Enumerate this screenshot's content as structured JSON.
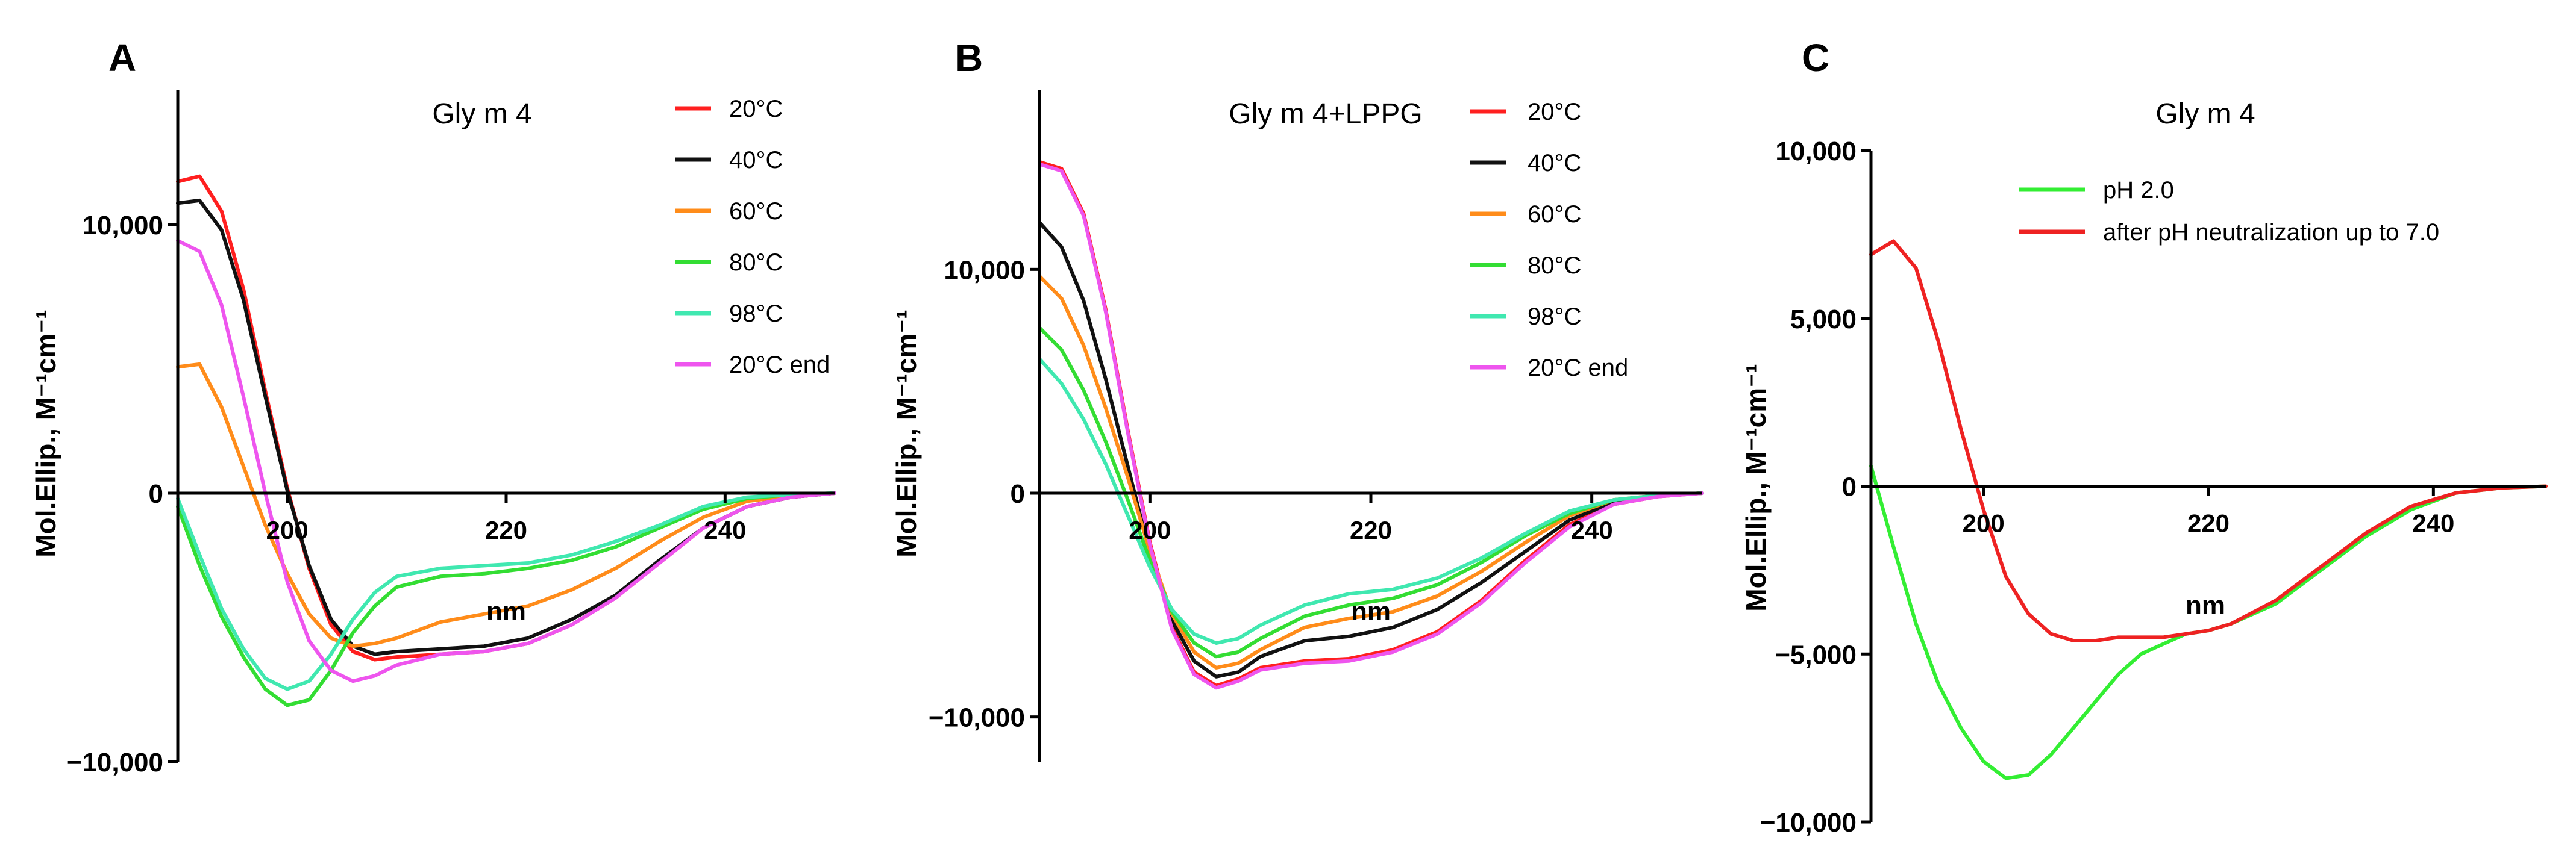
{
  "chart_data": [
    {
      "type": "line",
      "panel_label": "A",
      "title": "Gly m 4",
      "xlabel": "nm",
      "ylabel": "Mol.Ellip., M⁻¹cm⁻¹",
      "xlim": [
        190,
        250
      ],
      "ylim": [
        -10000,
        15000
      ],
      "xticks": [
        200,
        220,
        240
      ],
      "xtick_labels": [
        "200",
        "220",
        "240"
      ],
      "yticks": [
        10000,
        0,
        -10000
      ],
      "ytick_labels": [
        "10,000",
        "0",
        "−10,000"
      ],
      "legend_position": "top-right",
      "series": [
        {
          "name": "20°C",
          "color": "#ff1f1f",
          "x": [
            190,
            192,
            194,
            196,
            198,
            200,
            202,
            204,
            206,
            208,
            210,
            214,
            218,
            222,
            226,
            230,
            234,
            238,
            242,
            246,
            250
          ],
          "y": [
            11600,
            11800,
            10500,
            7600,
            3800,
            200,
            -2800,
            -4900,
            -5900,
            -6200,
            -6100,
            -6000,
            -5900,
            -5600,
            -4900,
            -3900,
            -2600,
            -1300,
            -500,
            -150,
            0
          ]
        },
        {
          "name": "40°C",
          "color": "#111111",
          "x": [
            190,
            192,
            194,
            196,
            198,
            200,
            202,
            204,
            206,
            208,
            210,
            214,
            218,
            222,
            226,
            230,
            234,
            238,
            242,
            246,
            250
          ],
          "y": [
            10800,
            10900,
            9800,
            7200,
            3600,
            100,
            -2700,
            -4700,
            -5700,
            -6000,
            -5900,
            -5800,
            -5700,
            -5400,
            -4700,
            -3800,
            -2500,
            -1300,
            -500,
            -150,
            0
          ]
        },
        {
          "name": "60°C",
          "color": "#ff8c1a",
          "x": [
            190,
            192,
            194,
            196,
            198,
            200,
            202,
            204,
            206,
            208,
            210,
            214,
            218,
            222,
            226,
            230,
            234,
            238,
            242,
            246,
            250
          ],
          "y": [
            4700,
            4800,
            3200,
            1000,
            -1200,
            -3000,
            -4500,
            -5400,
            -5700,
            -5600,
            -5400,
            -4800,
            -4500,
            -4200,
            -3600,
            -2800,
            -1800,
            -900,
            -300,
            -100,
            0
          ]
        },
        {
          "name": "80°C",
          "color": "#33dd33",
          "x": [
            190,
            192,
            194,
            196,
            198,
            200,
            202,
            204,
            206,
            208,
            210,
            214,
            218,
            222,
            226,
            230,
            234,
            238,
            242,
            246,
            250
          ],
          "y": [
            -500,
            -2700,
            -4600,
            -6100,
            -7300,
            -7900,
            -7700,
            -6600,
            -5200,
            -4200,
            -3500,
            -3100,
            -3000,
            -2800,
            -2500,
            -2000,
            -1300,
            -600,
            -200,
            -50,
            0
          ]
        },
        {
          "name": "98°C",
          "color": "#40e8b0",
          "x": [
            190,
            192,
            194,
            196,
            198,
            200,
            202,
            204,
            206,
            208,
            210,
            214,
            218,
            222,
            226,
            230,
            234,
            238,
            242,
            246,
            250
          ],
          "y": [
            -200,
            -2300,
            -4300,
            -5800,
            -6900,
            -7300,
            -7000,
            -6000,
            -4700,
            -3700,
            -3100,
            -2800,
            -2700,
            -2600,
            -2300,
            -1800,
            -1200,
            -500,
            -150,
            -50,
            0
          ]
        },
        {
          "name": "20°C end",
          "color": "#ee55ee",
          "x": [
            190,
            192,
            194,
            196,
            198,
            200,
            202,
            204,
            206,
            208,
            210,
            214,
            218,
            222,
            226,
            230,
            234,
            238,
            242,
            246,
            250
          ],
          "y": [
            9400,
            9000,
            7000,
            3600,
            0,
            -3300,
            -5500,
            -6600,
            -7000,
            -6800,
            -6400,
            -6000,
            -5900,
            -5600,
            -4900,
            -3900,
            -2600,
            -1300,
            -500,
            -150,
            0
          ]
        }
      ]
    },
    {
      "type": "line",
      "panel_label": "B",
      "title": "Gly m 4+LPPG",
      "xlabel": "nm",
      "ylabel": "Mol.Ellip., M⁻¹cm⁻¹",
      "xlim": [
        190,
        250
      ],
      "ylim": [
        -12000,
        18000
      ],
      "xticks": [
        200,
        220,
        240
      ],
      "xtick_labels": [
        "200",
        "220",
        "240"
      ],
      "yticks": [
        10000,
        0,
        -10000
      ],
      "ytick_labels": [
        "10,000",
        "0",
        "−10,000"
      ],
      "legend_position": "top-right",
      "series": [
        {
          "name": "20°C",
          "color": "#ff1f1f",
          "x": [
            190,
            192,
            194,
            196,
            198,
            200,
            202,
            204,
            206,
            208,
            210,
            214,
            218,
            222,
            226,
            230,
            234,
            238,
            242,
            246,
            250
          ],
          "y": [
            14800,
            14500,
            12500,
            8200,
            2800,
            -2200,
            -6000,
            -8000,
            -8600,
            -8300,
            -7800,
            -7500,
            -7400,
            -7000,
            -6200,
            -4800,
            -3000,
            -1400,
            -500,
            -150,
            0
          ]
        },
        {
          "name": "40°C",
          "color": "#111111",
          "x": [
            190,
            192,
            194,
            196,
            198,
            200,
            202,
            204,
            206,
            208,
            210,
            214,
            218,
            222,
            226,
            230,
            234,
            238,
            242,
            246,
            250
          ],
          "y": [
            12100,
            11000,
            8600,
            5100,
            1200,
            -2700,
            -5700,
            -7500,
            -8200,
            -8000,
            -7300,
            -6600,
            -6400,
            -6000,
            -5200,
            -4000,
            -2600,
            -1200,
            -400,
            -100,
            0
          ]
        },
        {
          "name": "60°C",
          "color": "#ff8c1a",
          "x": [
            190,
            192,
            194,
            196,
            198,
            200,
            202,
            204,
            206,
            208,
            210,
            214,
            218,
            222,
            226,
            230,
            234,
            238,
            242,
            246,
            250
          ],
          "y": [
            9700,
            8700,
            6600,
            3800,
            700,
            -2600,
            -5400,
            -7100,
            -7800,
            -7600,
            -7000,
            -6000,
            -5600,
            -5300,
            -4600,
            -3500,
            -2200,
            -1000,
            -300,
            -100,
            0
          ]
        },
        {
          "name": "80°C",
          "color": "#33dd33",
          "x": [
            190,
            192,
            194,
            196,
            198,
            200,
            202,
            204,
            206,
            208,
            210,
            214,
            218,
            222,
            226,
            230,
            234,
            238,
            242,
            246,
            250
          ],
          "y": [
            7400,
            6400,
            4600,
            2300,
            -300,
            -3000,
            -5300,
            -6700,
            -7300,
            -7100,
            -6500,
            -5500,
            -5000,
            -4700,
            -4100,
            -3100,
            -1900,
            -900,
            -300,
            -100,
            0
          ]
        },
        {
          "name": "98°C",
          "color": "#40e8b0",
          "x": [
            190,
            192,
            194,
            196,
            198,
            200,
            202,
            204,
            206,
            208,
            210,
            214,
            218,
            222,
            226,
            230,
            234,
            238,
            242,
            246,
            250
          ],
          "y": [
            6000,
            4900,
            3300,
            1300,
            -1000,
            -3300,
            -5200,
            -6300,
            -6700,
            -6500,
            -5900,
            -5000,
            -4500,
            -4300,
            -3800,
            -2900,
            -1800,
            -800,
            -300,
            -100,
            0
          ]
        },
        {
          "name": "20°C end",
          "color": "#ee55ee",
          "x": [
            190,
            192,
            194,
            196,
            198,
            200,
            202,
            204,
            206,
            208,
            210,
            214,
            218,
            222,
            226,
            230,
            234,
            238,
            242,
            246,
            250
          ],
          "y": [
            14700,
            14400,
            12400,
            8100,
            2700,
            -2300,
            -6100,
            -8100,
            -8700,
            -8400,
            -7900,
            -7600,
            -7500,
            -7100,
            -6300,
            -4900,
            -3100,
            -1500,
            -500,
            -150,
            0
          ]
        }
      ]
    },
    {
      "type": "line",
      "panel_label": "C",
      "title": "Gly m 4",
      "xlabel": "nm",
      "ylabel": "Mol.Ellip., M⁻¹cm⁻¹",
      "xlim": [
        190,
        250
      ],
      "ylim": [
        -10000,
        10000
      ],
      "xticks": [
        200,
        220,
        240
      ],
      "xtick_labels": [
        "200",
        "220",
        "240"
      ],
      "yticks": [
        10000,
        5000,
        0,
        -5000,
        -10000
      ],
      "ytick_labels": [
        "10,000",
        "5,000",
        "0",
        "−5,000",
        "−10,000"
      ],
      "legend_position": "top-right",
      "series": [
        {
          "name": "pH 2.0",
          "color": "#33ee33",
          "x": [
            190,
            192,
            194,
            196,
            198,
            200,
            202,
            204,
            206,
            208,
            210,
            212,
            214,
            216,
            218,
            220,
            222,
            226,
            230,
            234,
            238,
            242,
            246,
            250
          ],
          "y": [
            600,
            -1800,
            -4100,
            -5900,
            -7200,
            -8200,
            -8700,
            -8600,
            -8000,
            -7200,
            -6400,
            -5600,
            -5000,
            -4700,
            -4400,
            -4300,
            -4100,
            -3500,
            -2500,
            -1500,
            -700,
            -200,
            -50,
            0
          ]
        },
        {
          "name": "after pH neutralization up to 7.0",
          "color": "#ee2222",
          "x": [
            190,
            192,
            194,
            196,
            198,
            200,
            202,
            204,
            206,
            208,
            210,
            212,
            214,
            216,
            218,
            220,
            222,
            226,
            230,
            234,
            238,
            242,
            246,
            250
          ],
          "y": [
            6900,
            7300,
            6500,
            4300,
            1700,
            -700,
            -2700,
            -3800,
            -4400,
            -4600,
            -4600,
            -4500,
            -4500,
            -4500,
            -4400,
            -4300,
            -4100,
            -3400,
            -2400,
            -1400,
            -600,
            -200,
            -50,
            0
          ]
        }
      ]
    }
  ]
}
